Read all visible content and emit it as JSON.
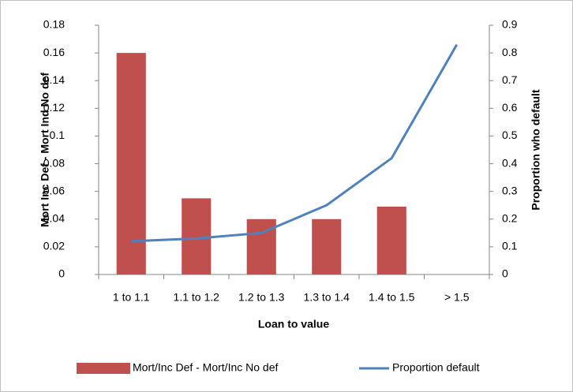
{
  "chart_data": {
    "type": "bar",
    "x_label": "Loan to value",
    "y_label": "Mort Inc Def - Mort Ind No def",
    "y2_label": "Proportion who default",
    "categories": [
      "1 to 1.1",
      "1.1 to 1.2",
      "1.2 to 1.3",
      "1.3 to 1.4",
      "1.4 to 1.5",
      "> 1.5"
    ],
    "series": [
      {
        "name": "Mort/Inc Def - Mort/Inc No def",
        "color": "#c0504d",
        "values": [
          0.16,
          0.055,
          0.04,
          0.04,
          0.049,
          null
        ]
      },
      {
        "name": "Proportion default",
        "type": "line",
        "axis": "y2",
        "color": "#4f81bd",
        "values": [
          0.12,
          0.13,
          0.15,
          0.25,
          0.42,
          0.83
        ]
      }
    ],
    "ylim": [
      0,
      0.18
    ],
    "yticks": [
      0,
      0.02,
      0.04,
      0.06,
      0.08,
      0.1,
      0.12,
      0.14,
      0.16,
      0.18
    ],
    "y2lim": [
      0,
      0.9
    ],
    "y2ticks": [
      0,
      0.1,
      0.2,
      0.3,
      0.4,
      0.5,
      0.6,
      0.7,
      0.8,
      0.9
    ],
    "grid": false
  }
}
